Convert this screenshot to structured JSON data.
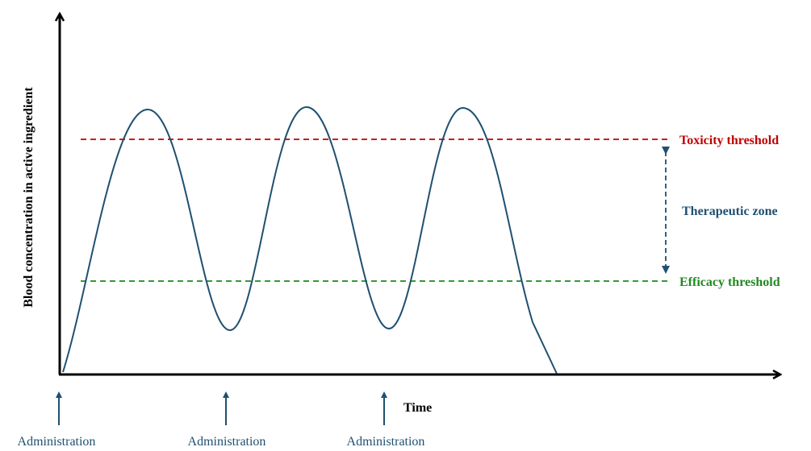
{
  "y_axis_label": "Blood concentration in active ingredient",
  "x_axis_label": "Time",
  "toxicity_label": "Toxicity threshold",
  "therapeutic_label": "Therapeutic zone",
  "efficacy_label": "Efficacy threshold",
  "administrations": [
    {
      "label": "Administration"
    },
    {
      "label": "Administration"
    },
    {
      "label": "Administration"
    }
  ],
  "colors": {
    "axis": "#000000",
    "curve": "#1f5070",
    "toxicity": "#c00000",
    "efficacy": "#1f8a1f",
    "therapeutic": "#1f5070",
    "admin": "#1f5070"
  }
}
